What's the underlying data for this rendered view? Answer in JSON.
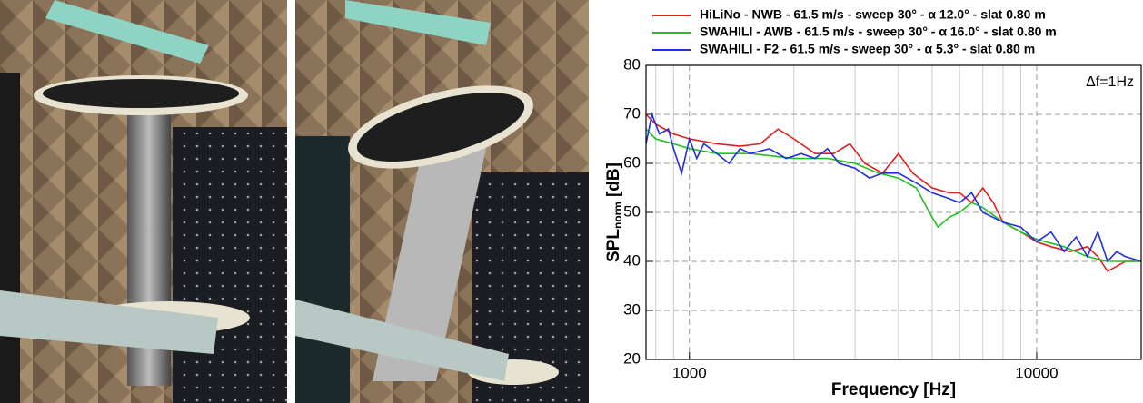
{
  "chart_data": {
    "type": "line",
    "y_label": "SPL",
    "y_label_subscript": "norm",
    "y_label_unit": "[dB]",
    "x_label": "Frequency [Hz]",
    "annotation": "Δf=1Hz",
    "x_log": true,
    "grid": true,
    "xlim": [
      750,
      20000
    ],
    "ylim": [
      20,
      80
    ],
    "xticks": [
      1000,
      10000
    ],
    "x_minor_ticks": [
      800,
      900,
      2000,
      3000,
      4000,
      5000,
      6000,
      7000,
      8000,
      9000,
      20000
    ],
    "yticks": [
      20,
      30,
      40,
      50,
      60,
      70,
      80
    ],
    "series": [
      {
        "name": "HiLiNo - NWB - 61.5 m/s - sweep 30° - α 12.0° - slat 0.80 m",
        "color": "#e02020",
        "x": [
          750,
          800,
          900,
          1000,
          1200,
          1400,
          1600,
          1800,
          2000,
          2300,
          2600,
          2900,
          3200,
          3600,
          4000,
          4400,
          5000,
          5600,
          6000,
          6500,
          7000,
          7500,
          8000,
          9000,
          10000,
          11000,
          12500,
          14000,
          15000,
          16000,
          17000,
          18000,
          20000
        ],
        "values": [
          70,
          68,
          66,
          65,
          64,
          63.5,
          64,
          67,
          65,
          62,
          62,
          64,
          60,
          58,
          62,
          58,
          55,
          54,
          54,
          52,
          55,
          52,
          48,
          46,
          44,
          43,
          42,
          43,
          41,
          38,
          39,
          40,
          40
        ]
      },
      {
        "name": "SWAHILI - AWB - 61.5 m/s - sweep 30° - α 16.0° - slat 0.80 m",
        "color": "#20c020",
        "x": [
          750,
          800,
          900,
          1000,
          1200,
          1500,
          2000,
          2500,
          3000,
          3500,
          4000,
          4500,
          5000,
          5200,
          5600,
          6000,
          6500,
          7000,
          8000,
          9000,
          10000,
          12000,
          14000,
          16000,
          20000
        ],
        "values": [
          67,
          65,
          64,
          63,
          62,
          62,
          61,
          61,
          60,
          58,
          57,
          55,
          49,
          47,
          49,
          50,
          52,
          51,
          48,
          46,
          44.5,
          43,
          41,
          40,
          40
        ]
      },
      {
        "name": "SWAHILI - F2 - 61.5 m/s - sweep 30° - α 5.3° - slat 0.80 m",
        "color": "#2030e0",
        "x": [
          750,
          780,
          820,
          870,
          900,
          950,
          1000,
          1050,
          1100,
          1200,
          1300,
          1400,
          1500,
          1700,
          1900,
          2100,
          2300,
          2500,
          2700,
          3000,
          3300,
          3600,
          4000,
          4500,
          5000,
          5500,
          6000,
          6500,
          7000,
          8000,
          9000,
          10000,
          11000,
          12000,
          13000,
          14000,
          15000,
          16000,
          17000,
          18000,
          20000
        ],
        "values": [
          64,
          70,
          66,
          67,
          63,
          58,
          65,
          61,
          64,
          62,
          60,
          63,
          62,
          63,
          61,
          62,
          61,
          63,
          60,
          59,
          57,
          58,
          58,
          56,
          54,
          53,
          52,
          54,
          50,
          48,
          47,
          44,
          46,
          42,
          45,
          41,
          46,
          40,
          42,
          41,
          40
        ]
      }
    ]
  }
}
